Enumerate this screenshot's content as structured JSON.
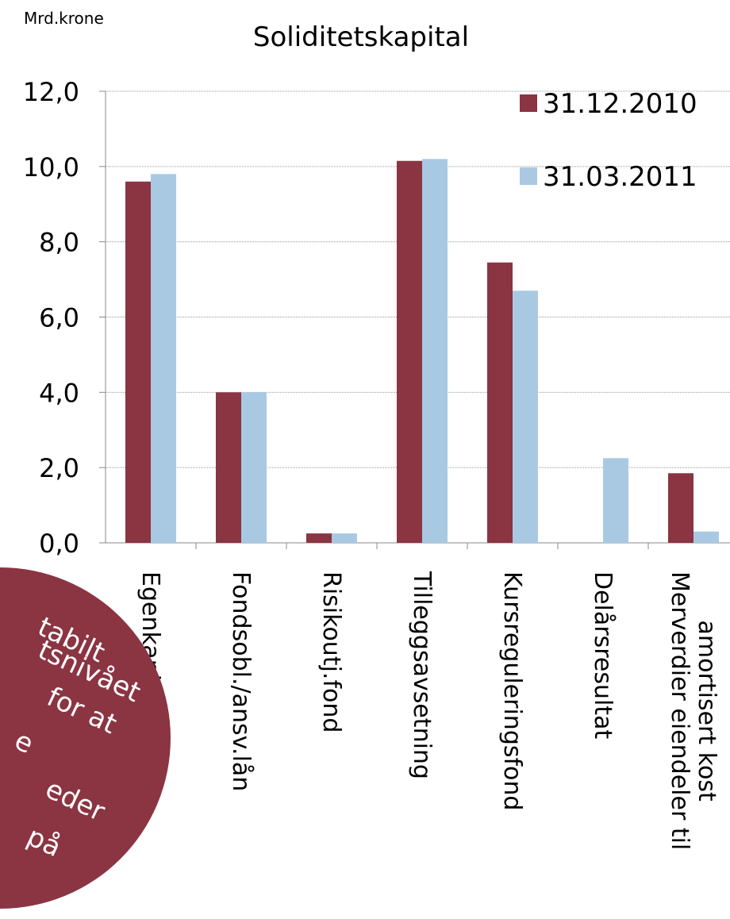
{
  "chart_data": {
    "type": "bar",
    "title": "Soliditetskapital",
    "y_unit_label": "Mrd.krone",
    "categories": [
      "Egenkapital",
      "Fondsobl./ansv.lån",
      "Risikoutj.fond",
      "Tilleggsavsetning",
      "Kursreguleringsfond",
      "Delårsresultat",
      "Merverdier eiendeler til\namortisert kost"
    ],
    "series": [
      {
        "name": "31.12.2010",
        "color": "#8b3442",
        "values": [
          9.6,
          4.0,
          0.25,
          10.15,
          7.45,
          null,
          1.85
        ]
      },
      {
        "name": "31.03.2011",
        "color": "#a9c9e3",
        "values": [
          9.8,
          4.0,
          0.25,
          10.2,
          6.7,
          2.25,
          0.3
        ]
      }
    ],
    "ylim": [
      0,
      12
    ],
    "yticks": [
      {
        "value": 0,
        "label": "0,0"
      },
      {
        "value": 2,
        "label": "2,0"
      },
      {
        "value": 4,
        "label": "4,0"
      },
      {
        "value": 6,
        "label": "6,0"
      },
      {
        "value": 8,
        "label": "8,0"
      },
      {
        "value": 10,
        "label": "10,0"
      },
      {
        "value": 12,
        "label": "12,0"
      }
    ],
    "grid": true,
    "legend": "top-right",
    "overlay_text": [
      "tabilt",
      "tsnivået",
      "for at",
      "e",
      "eder",
      "på"
    ]
  }
}
